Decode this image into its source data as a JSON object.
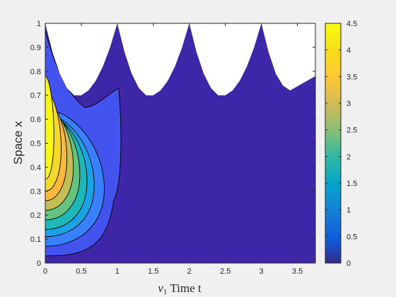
{
  "chart_data": {
    "type": "heatmap",
    "title": "",
    "xlabel": "$v_1$ Time t",
    "xlabel_parts": {
      "var": "v",
      "sub": "1",
      "rest": " Time t"
    },
    "ylabel": "Space x",
    "xlim": [
      0,
      3.75
    ],
    "ylim": [
      0,
      1
    ],
    "xticks": [
      0,
      0.5,
      1,
      1.5,
      2,
      2.5,
      3,
      3.5
    ],
    "xtick_labels": [
      "0",
      "0.5",
      "1",
      "1.5",
      "2",
      "2.5",
      "3",
      "3.5"
    ],
    "yticks": [
      0,
      0.1,
      0.2,
      0.3,
      0.4,
      0.5,
      0.6,
      0.7,
      0.8,
      0.9,
      1
    ],
    "ytick_labels": [
      "0",
      "0.1",
      "0.2",
      "0.3",
      "0.4",
      "0.5",
      "0.6",
      "0.7",
      "0.8",
      "0.9",
      "1"
    ],
    "colorbar": {
      "range": [
        0,
        4.5
      ],
      "ticks": [
        0,
        0.5,
        1,
        1.5,
        2,
        2.5,
        3,
        3.5,
        4,
        4.5
      ],
      "tick_labels": [
        "0",
        "0.5",
        "1",
        "1.5",
        "2",
        "2.5",
        "3",
        "3.5",
        "4",
        "4.5"
      ],
      "colormap": "parula"
    },
    "domain_upper_boundary": [
      [
        0,
        1.0
      ],
      [
        0.1,
        0.88
      ],
      [
        0.2,
        0.79
      ],
      [
        0.3,
        0.73
      ],
      [
        0.4,
        0.7
      ],
      [
        0.5,
        0.7
      ],
      [
        0.6,
        0.72
      ],
      [
        0.7,
        0.76
      ],
      [
        0.8,
        0.82
      ],
      [
        0.9,
        0.9
      ],
      [
        1.0,
        1.0
      ],
      [
        1.1,
        0.88
      ],
      [
        1.2,
        0.79
      ],
      [
        1.3,
        0.73
      ],
      [
        1.4,
        0.7
      ],
      [
        1.5,
        0.7
      ],
      [
        1.6,
        0.72
      ],
      [
        1.7,
        0.76
      ],
      [
        1.8,
        0.82
      ],
      [
        1.9,
        0.9
      ],
      [
        2.0,
        1.0
      ],
      [
        2.1,
        0.88
      ],
      [
        2.2,
        0.79
      ],
      [
        2.3,
        0.73
      ],
      [
        2.4,
        0.7
      ],
      [
        2.5,
        0.7
      ],
      [
        2.6,
        0.72
      ],
      [
        2.7,
        0.76
      ],
      [
        2.8,
        0.82
      ],
      [
        2.9,
        0.9
      ],
      [
        3.0,
        1.0
      ],
      [
        3.1,
        0.88
      ],
      [
        3.2,
        0.79
      ],
      [
        3.3,
        0.74
      ],
      [
        3.4,
        0.72
      ],
      [
        3.75,
        0.78
      ]
    ],
    "levels": [
      0,
      0.5,
      1,
      1.5,
      2,
      2.5,
      3,
      3.5,
      4
    ],
    "peak": {
      "t": 0,
      "x": 0.45,
      "value": 4.5
    },
    "colors": {
      "figure_bg": "#f0f0f0",
      "axes_bg": "#ffffff",
      "axis": "#262626",
      "contour_line": "#000000"
    }
  }
}
